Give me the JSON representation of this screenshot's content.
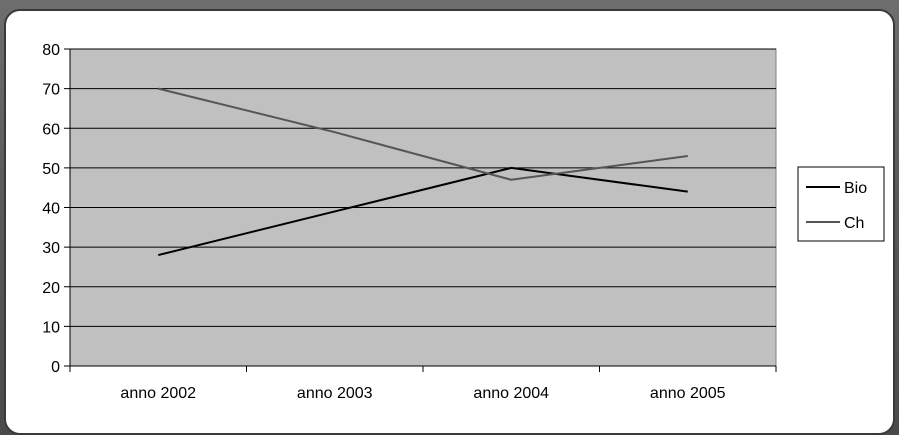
{
  "chart_data": {
    "type": "line",
    "categories": [
      "anno 2002",
      "anno 2003",
      "anno 2004",
      "anno 2005"
    ],
    "series": [
      {
        "name": "Bio",
        "values": [
          28,
          39,
          50,
          44
        ],
        "color": "#000000"
      },
      {
        "name": "Ch",
        "values": [
          70,
          59,
          47,
          53
        ],
        "color": "#555555"
      }
    ],
    "ylim": [
      0,
      80
    ],
    "yticks": [
      0,
      10,
      20,
      30,
      40,
      50,
      60,
      70,
      80
    ],
    "grid": true,
    "plot_background": "#c0c0c0",
    "legend_position": "right"
  }
}
